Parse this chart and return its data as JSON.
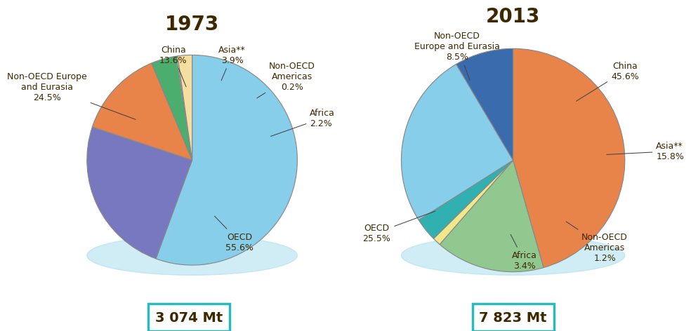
{
  "title_1973": "1973",
  "title_2013": "2013",
  "total_1973": "3 074 Mt",
  "total_2013": "7 823 Mt",
  "pie1973": {
    "slices": [
      {
        "label": "OECD",
        "pct": "55.6%",
        "value": 55.6,
        "color": "#87CEEB"
      },
      {
        "label": "Non-OECD Europe\nand Eurasia",
        "pct": "24.5%",
        "value": 24.5,
        "color": "#7878C0"
      },
      {
        "label": "China",
        "pct": "13.6%",
        "value": 13.6,
        "color": "#E8834A"
      },
      {
        "label": "Asia**",
        "pct": "3.9%",
        "value": 3.9,
        "color": "#4BAD6E"
      },
      {
        "label": "Non-OECD\nAmericas",
        "pct": "0.2%",
        "value": 0.2,
        "color": "#F0E88A"
      },
      {
        "label": "Africa",
        "pct": "2.2%",
        "value": 2.2,
        "color": "#F5DFA0"
      }
    ],
    "startangle": 90,
    "counterclock": false,
    "labels_1973": [
      {
        "text": "Non-OECD Europe\nand Eurasia\n24.5%",
        "xt": -1.38,
        "yt": 0.7,
        "xp": -0.52,
        "yp": 0.38,
        "ha": "center"
      },
      {
        "text": "China\n13.6%",
        "xt": -0.18,
        "yt": 1.0,
        "xp": -0.05,
        "yp": 0.68,
        "ha": "center"
      },
      {
        "text": "Asia**\n3.9%",
        "xt": 0.38,
        "yt": 1.0,
        "xp": 0.27,
        "yp": 0.74,
        "ha": "center"
      },
      {
        "text": "Non-OECD\nAmericas\n0.2%",
        "xt": 0.95,
        "yt": 0.8,
        "xp": 0.6,
        "yp": 0.58,
        "ha": "center"
      },
      {
        "text": "Africa\n2.2%",
        "xt": 1.12,
        "yt": 0.4,
        "xp": 0.73,
        "yp": 0.22,
        "ha": "left"
      },
      {
        "text": "OECD\n55.6%",
        "xt": 0.45,
        "yt": -0.78,
        "xp": 0.2,
        "yp": -0.52,
        "ha": "center"
      }
    ]
  },
  "pie2013": {
    "slices": [
      {
        "label": "China",
        "pct": "45.6%",
        "value": 45.6,
        "color": "#E8834A"
      },
      {
        "label": "Asia**",
        "pct": "15.8%",
        "value": 15.8,
        "color": "#90C890"
      },
      {
        "label": "Non-OECD\nAmericas",
        "pct": "1.2%",
        "value": 1.2,
        "color": "#F0E88A"
      },
      {
        "label": "Africa",
        "pct": "3.4%",
        "value": 3.4,
        "color": "#30B0B0"
      },
      {
        "label": "OECD",
        "pct": "25.5%",
        "value": 25.5,
        "color": "#87CEEB"
      },
      {
        "label": "Non-OECD\nEurope and Eurasia",
        "pct": "8.5%",
        "value": 8.5,
        "color": "#3A6BAD"
      }
    ],
    "startangle": 90,
    "counterclock": false,
    "labels_2013": [
      {
        "text": "Non-OECD\nEurope and Eurasia\n8.5%",
        "xt": -0.5,
        "yt": 1.02,
        "xp": -0.38,
        "yp": 0.7,
        "ha": "center"
      },
      {
        "text": "China\n45.6%",
        "xt": 1.0,
        "yt": 0.8,
        "xp": 0.55,
        "yp": 0.52,
        "ha": "center"
      },
      {
        "text": "Asia**\n15.8%",
        "xt": 1.28,
        "yt": 0.08,
        "xp": 0.82,
        "yp": 0.05,
        "ha": "left"
      },
      {
        "text": "Non-OECD\nAmericas\n1.2%",
        "xt": 0.82,
        "yt": -0.78,
        "xp": 0.46,
        "yp": -0.54,
        "ha": "center"
      },
      {
        "text": "Africa\n3.4%",
        "xt": 0.1,
        "yt": -0.9,
        "xp": -0.03,
        "yp": -0.65,
        "ha": "center"
      },
      {
        "text": "OECD\n25.5%",
        "xt": -1.22,
        "yt": -0.65,
        "xp": -0.68,
        "yp": -0.45,
        "ha": "center"
      }
    ]
  },
  "text_color": "#3D2800",
  "box_edge_color": "#2ABABA",
  "bg_color": "#FFFFFF",
  "title_fontsize": 20,
  "label_fontsize": 9,
  "shadow_color_oecd_1973": "#A8D8F0",
  "shadow_color_oecd_2013": "#A8D8F0"
}
